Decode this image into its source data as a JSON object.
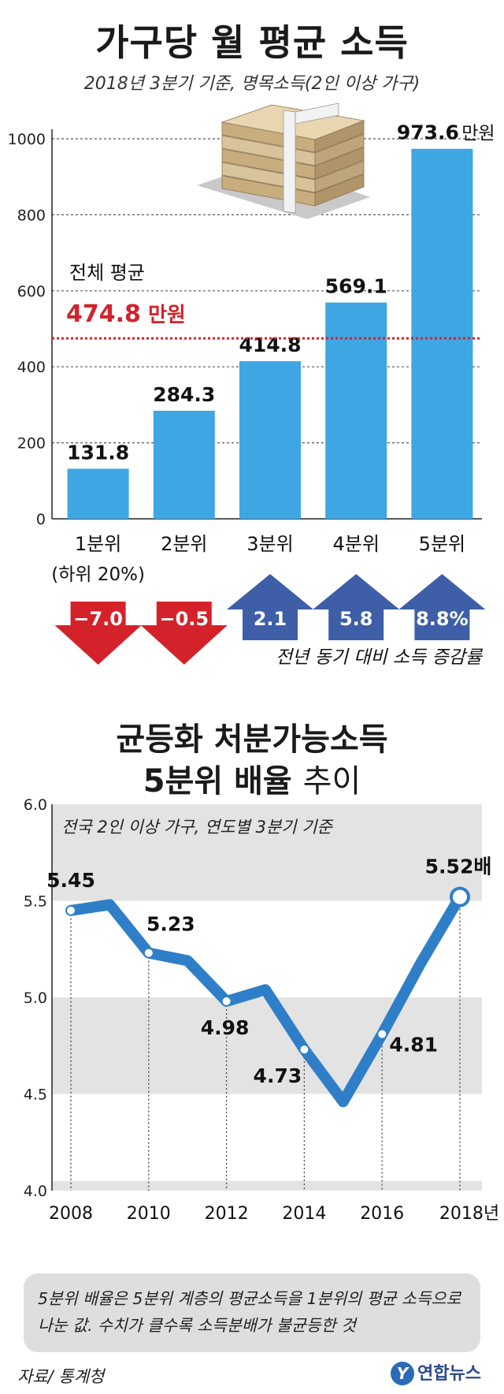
{
  "title": "가구당 월 평균 소득",
  "subtitle": "2018년 3분기 기준, 명목소득(2인 이상 가구)",
  "colors": {
    "bar": "#3ea6e2",
    "avg_line": "#d4222b",
    "down": "#d4222b",
    "up": "#3e5fa8",
    "line": "#2f7fc8"
  },
  "icons": [
    "money-bundle-icon"
  ],
  "chart_data": [
    {
      "type": "bar",
      "title": "가구당 월 평균 소득",
      "subtitle": "2018년 3분기 기준, 명목소득(2인 이상 가구)",
      "categories": [
        "1분위",
        "2분위",
        "3분위",
        "4분위",
        "5분위"
      ],
      "category_note": "(하위 20%)",
      "values": [
        131.8,
        284.3,
        414.8,
        569.1,
        973.6
      ],
      "value_labels": [
        "131.8",
        "284.3",
        "414.8",
        "569.1",
        "973.6"
      ],
      "last_unit": "만원",
      "ylim": [
        0,
        1000
      ],
      "yticks": [
        0,
        200,
        400,
        600,
        800,
        1000
      ],
      "ytick_labels": [
        "0",
        "200",
        "400",
        "600",
        "800",
        "1000"
      ],
      "average": {
        "label": "전체 평균",
        "value": 474.8,
        "value_text": "474.8",
        "unit": "만원"
      },
      "change": {
        "label": "전년 동기 대비 소득 증감률",
        "values": [
          -7.0,
          -0.5,
          2.1,
          5.8,
          8.8
        ],
        "labels": [
          "−7.0",
          "−0.5",
          "2.1",
          "5.8",
          "8.8%"
        ]
      }
    },
    {
      "type": "line",
      "title_line1": "균등화 처분가능소득",
      "title_line2_bold": "5분위 배율",
      "title_line2_light": "추이",
      "subtitle": "전국 2인 이상 가구, 연도별 3분기 기준",
      "x": [
        2008,
        2009,
        2010,
        2011,
        2012,
        2013,
        2014,
        2015,
        2016,
        2017,
        2018
      ],
      "y": [
        5.45,
        5.48,
        5.23,
        5.19,
        4.98,
        5.04,
        4.73,
        4.46,
        4.81,
        5.18,
        5.52
      ],
      "labeled": [
        {
          "year": 2008,
          "text": "5.45"
        },
        {
          "year": 2010,
          "text": "5.23"
        },
        {
          "year": 2012,
          "text": "4.98"
        },
        {
          "year": 2014,
          "text": "4.73"
        },
        {
          "year": 2016,
          "text": "4.81"
        },
        {
          "year": 2018,
          "text": "5.52배"
        }
      ],
      "xtick_labels": [
        "2008",
        "2010",
        "2012",
        "2014",
        "2016",
        "2018년"
      ],
      "ylim": [
        4.0,
        6.0
      ],
      "yticks": [
        "4.0",
        "4.5",
        "5.0",
        "5.5",
        "6.0"
      ]
    }
  ],
  "note": "5분위 배율은 5분위 계층의 평균소득을 1분위의 평균 소득으로 나눈 값. 수치가 클수록 소득분배가 불균등한 것",
  "source": "자료/ 통계청",
  "logo": "연합뉴스",
  "logo_mark": "Y"
}
